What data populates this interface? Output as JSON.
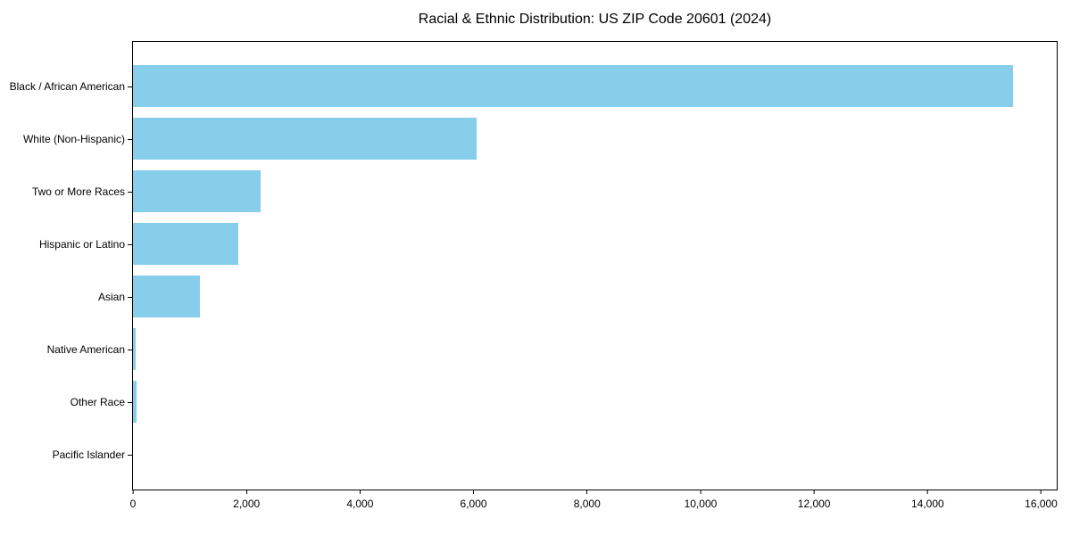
{
  "chart_data": {
    "type": "bar",
    "orientation": "horizontal",
    "title": "Racial & Ethnic Distribution: US ZIP Code 20601 (2024)",
    "categories": [
      "Black / African American",
      "White (Non-Hispanic)",
      "Two or More Races",
      "Hispanic or Latino",
      "Asian",
      "Native American",
      "Other Race",
      "Pacific Islander"
    ],
    "values": [
      15500,
      6050,
      2250,
      1850,
      1180,
      50,
      65,
      0
    ],
    "xlabel": "",
    "ylabel": "",
    "xlim": [
      0,
      16275
    ],
    "x_ticks": [
      0,
      2000,
      4000,
      6000,
      8000,
      10000,
      12000,
      14000,
      16000
    ],
    "x_tick_labels": [
      "0",
      "2,000",
      "4,000",
      "6,000",
      "8,000",
      "10,000",
      "12,000",
      "14,000",
      "16,000"
    ],
    "bar_color": "#87CEEB",
    "axis_color": "#000000",
    "background_color": "#ffffff",
    "grid": false,
    "legend": null
  }
}
